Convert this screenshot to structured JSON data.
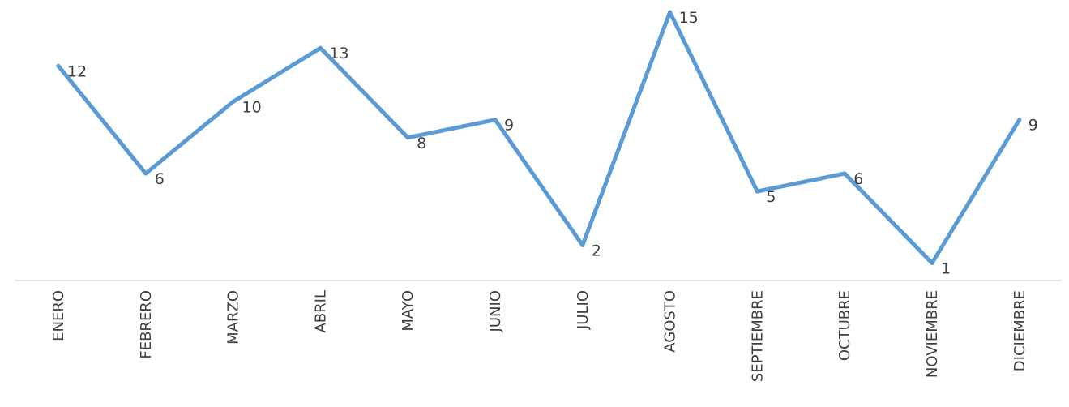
{
  "chart_data": {
    "type": "line",
    "categories": [
      "ENERO",
      "FEBRERO",
      "MARZO",
      "ABRIL",
      "MAYO",
      "JUNIO",
      "JULIO",
      "AGOSTO",
      "SEPTIEMBRE",
      "OCTUBRE",
      "NOVIEMBRE",
      "DICIEMBRE"
    ],
    "series": [
      {
        "values": [
          12,
          6,
          10,
          13,
          8,
          9,
          2,
          15,
          5,
          6,
          1,
          9
        ],
        "color": "#5B9BD5"
      }
    ],
    "data_labels": [
      "12",
      "6",
      "10",
      "13",
      "8",
      "9",
      "2",
      "15",
      "5",
      "6",
      "1",
      "9"
    ],
    "ylim": [
      0,
      15
    ],
    "y_axis_visible": false,
    "grid": false,
    "legend": "none",
    "x_tick_rotation": "vertical",
    "axis_color": "#D9D9D9",
    "text_color": "#404040"
  }
}
